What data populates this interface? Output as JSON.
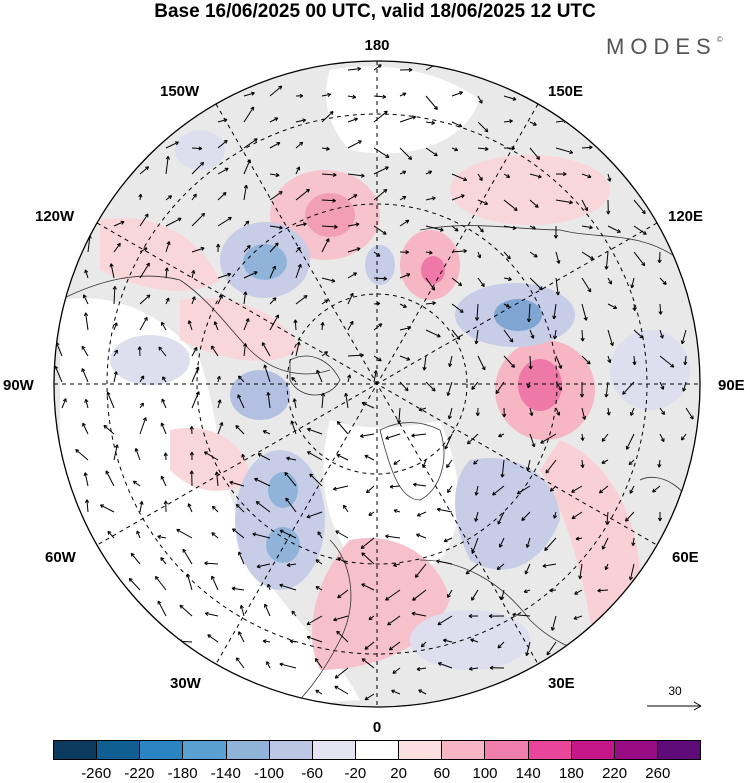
{
  "title": "Base 16/06/2025 00 UTC, valid 18/06/2025 12 UTC",
  "brand": "MODES",
  "brand_mark": "©",
  "longitude_labels": {
    "top": "180",
    "bottom": "0",
    "left": "90W",
    "right": "90E",
    "upper_left_150": "150W",
    "upper_left_120": "120W",
    "upper_right_150": "150E",
    "upper_right_120": "120E",
    "lower_left_60": "60W",
    "lower_left_30": "30W",
    "lower_right_60": "60E",
    "lower_right_30": "30E"
  },
  "reference_vector": {
    "label": "30"
  },
  "colorbar": {
    "colors": [
      "#0b3a5e",
      "#105f93",
      "#2b85c2",
      "#5aa0d1",
      "#8fb3d9",
      "#bcc7e6",
      "#e4e4f2",
      "#ffffff",
      "#fbe0e0",
      "#f6b6c4",
      "#f07fae",
      "#e8459b",
      "#c6178a",
      "#990c84",
      "#5e0a78"
    ],
    "tick_labels": [
      "-260",
      "-220",
      "-180",
      "-140",
      "-100",
      "-60",
      "-20",
      "20",
      "60",
      "100",
      "140",
      "180",
      "220",
      "260"
    ]
  },
  "colors": {
    "land_gray": "#e6e6e6",
    "ocean": "#ffffff",
    "grid": "#000000"
  }
}
